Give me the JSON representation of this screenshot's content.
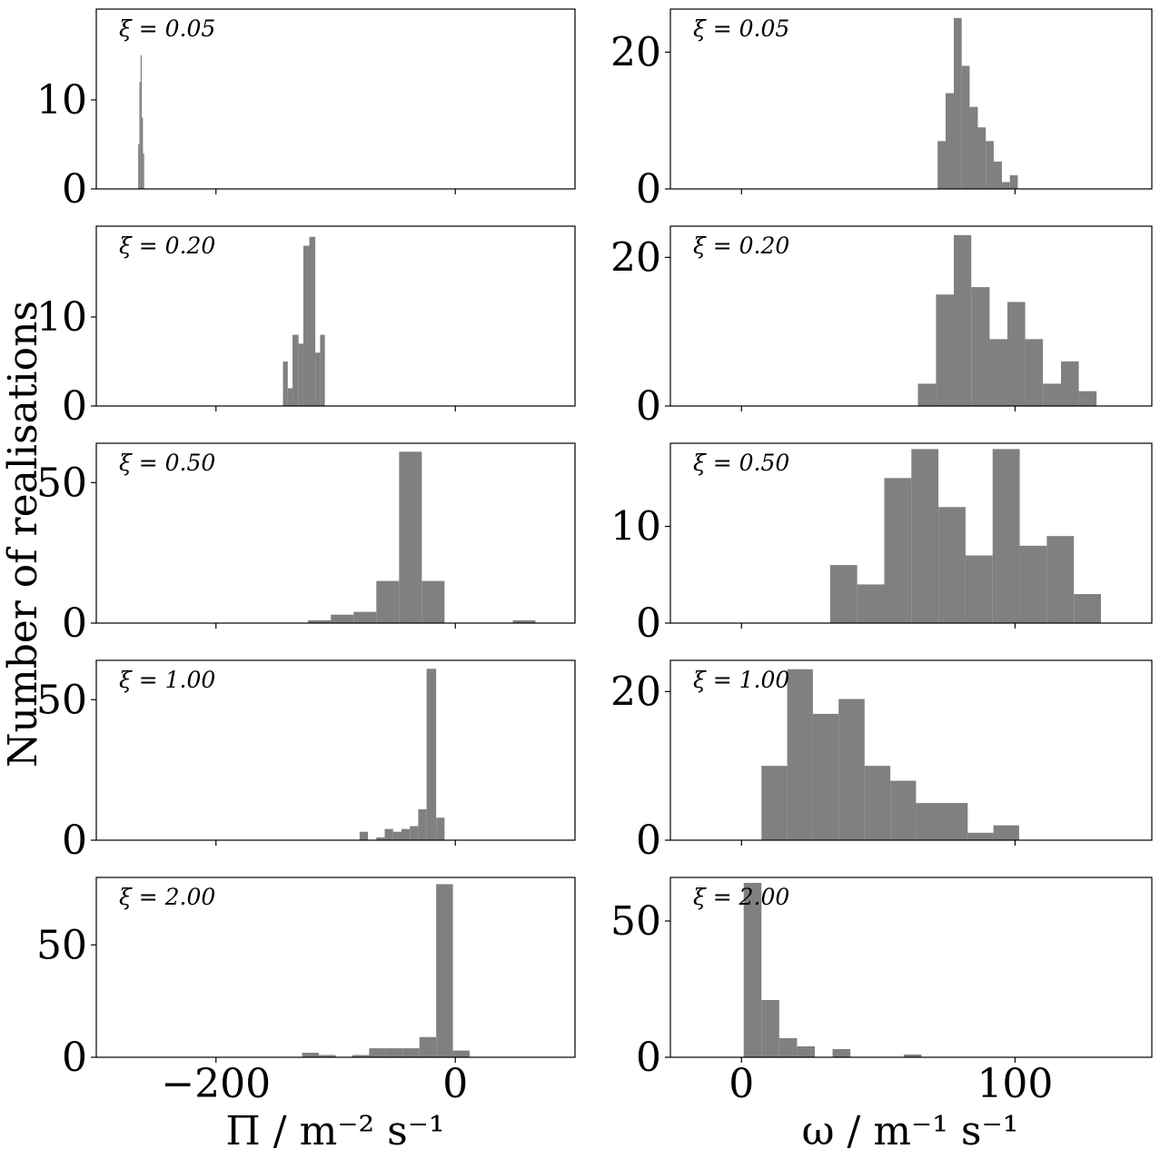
{
  "figure": {
    "ylabel": "Number of realisations",
    "columns": [
      {
        "xlabel": "Π / m⁻² s⁻¹"
      },
      {
        "xlabel": "ω / m⁻¹ s⁻¹"
      }
    ]
  },
  "chart_data": [
    {
      "type": "bar",
      "column": 0,
      "row": 0,
      "label": "ξ = 0.05",
      "xlim": [
        -300,
        100
      ],
      "ylim": [
        0,
        20.2
      ],
      "xticks": [
        -200,
        0
      ],
      "xtick_labels": [
        "−200",
        "0"
      ],
      "yticks": [
        0,
        10
      ],
      "ytick_labels": [
        "0",
        "10"
      ],
      "bins": [
        [
          -265,
          -264,
          5
        ],
        [
          -264,
          -263,
          12
        ],
        [
          -263,
          -262,
          15
        ],
        [
          -262,
          -261,
          8
        ],
        [
          -261,
          -260,
          4
        ]
      ]
    },
    {
      "type": "bar",
      "column": 1,
      "row": 0,
      "label": "ξ = 0.05",
      "xlim": [
        -26,
        150
      ],
      "ylim": [
        0,
        26.3
      ],
      "xticks": [
        0,
        100
      ],
      "xtick_labels": [
        "0",
        "100"
      ],
      "yticks": [
        0,
        20
      ],
      "ytick_labels": [
        "0",
        "20"
      ],
      "bins": [
        [
          71.7,
          74.6,
          7
        ],
        [
          74.6,
          77.6,
          14
        ],
        [
          77.6,
          80.5,
          25
        ],
        [
          80.5,
          83.4,
          18
        ],
        [
          83.4,
          86.4,
          12
        ],
        [
          86.4,
          89.3,
          9
        ],
        [
          89.3,
          92.2,
          7
        ],
        [
          92.2,
          95.2,
          4
        ],
        [
          95.2,
          98.1,
          1
        ],
        [
          98.1,
          101.0,
          2
        ]
      ]
    },
    {
      "type": "bar",
      "column": 0,
      "row": 1,
      "label": "ξ = 0.20",
      "xlim": [
        -300,
        100
      ],
      "ylim": [
        0,
        20.2
      ],
      "xticks": [
        -200,
        0
      ],
      "xtick_labels": [
        "−200",
        "0"
      ],
      "yticks": [
        0,
        10
      ],
      "ytick_labels": [
        "0",
        "10"
      ],
      "bins": [
        [
          -144,
          -140,
          5
        ],
        [
          -140,
          -136,
          2
        ],
        [
          -136,
          -131,
          8
        ],
        [
          -131,
          -127,
          7
        ],
        [
          -127,
          -122,
          18
        ],
        [
          -122,
          -117,
          19
        ],
        [
          -117,
          -113,
          6
        ],
        [
          -113,
          -109,
          8
        ]
      ]
    },
    {
      "type": "bar",
      "column": 1,
      "row": 1,
      "label": "ξ = 0.20",
      "xlim": [
        -26,
        150
      ],
      "ylim": [
        0,
        24.2
      ],
      "xticks": [
        0,
        100
      ],
      "xtick_labels": [
        "0",
        "100"
      ],
      "yticks": [
        0,
        20
      ],
      "ytick_labels": [
        "0",
        "20"
      ],
      "bins": [
        [
          64.5,
          71.1,
          3
        ],
        [
          71.1,
          77.6,
          15
        ],
        [
          77.6,
          84.0,
          23
        ],
        [
          84.0,
          90.7,
          16
        ],
        [
          90.7,
          97.2,
          9
        ],
        [
          97.2,
          103.7,
          14
        ],
        [
          103.7,
          110.2,
          9
        ],
        [
          110.2,
          116.8,
          3
        ],
        [
          116.8,
          123.3,
          6
        ],
        [
          123.3,
          129.8,
          2
        ]
      ]
    },
    {
      "type": "bar",
      "column": 0,
      "row": 2,
      "label": "ξ = 0.50",
      "xlim": [
        -300,
        100
      ],
      "ylim": [
        0,
        64
      ],
      "xticks": [
        -200,
        0
      ],
      "xtick_labels": [
        "−200",
        "0"
      ],
      "yticks": [
        0,
        50
      ],
      "ytick_labels": [
        "0",
        "50"
      ],
      "bins": [
        [
          -123,
          -104,
          1
        ],
        [
          -104,
          -85,
          3
        ],
        [
          -85,
          -66,
          4
        ],
        [
          -66,
          -47,
          15
        ],
        [
          -47,
          -28,
          61
        ],
        [
          -28,
          -9,
          15
        ],
        [
          -9,
          10,
          0
        ],
        [
          10,
          29,
          0
        ],
        [
          48,
          67,
          1
        ]
      ]
    },
    {
      "type": "bar",
      "column": 1,
      "row": 2,
      "label": "ξ = 0.50",
      "xlim": [
        -26,
        150
      ],
      "ylim": [
        0,
        18.6
      ],
      "xticks": [
        0,
        100
      ],
      "xtick_labels": [
        "0",
        "100"
      ],
      "yticks": [
        0,
        10
      ],
      "ytick_labels": [
        "0",
        "10"
      ],
      "bins": [
        [
          32.4,
          42.3,
          6
        ],
        [
          42.3,
          52.2,
          4
        ],
        [
          52.2,
          62.1,
          15
        ],
        [
          62.1,
          72.0,
          18
        ],
        [
          72.0,
          81.9,
          12
        ],
        [
          81.9,
          91.8,
          7
        ],
        [
          91.8,
          101.7,
          18
        ],
        [
          101.7,
          111.6,
          8
        ],
        [
          111.6,
          121.5,
          9
        ],
        [
          121.5,
          131.4,
          3
        ]
      ]
    },
    {
      "type": "bar",
      "column": 0,
      "row": 3,
      "label": "ξ = 1.00",
      "xlim": [
        -300,
        100
      ],
      "ylim": [
        0,
        64
      ],
      "xticks": [
        -200,
        0
      ],
      "xtick_labels": [
        "−200",
        "0"
      ],
      "yticks": [
        0,
        50
      ],
      "ytick_labels": [
        "0",
        "50"
      ],
      "bins": [
        [
          -80,
          -73,
          3
        ],
        [
          -73,
          -66,
          0
        ],
        [
          -66,
          -59,
          1
        ],
        [
          -59,
          -52,
          4
        ],
        [
          -52,
          -45,
          3
        ],
        [
          -45,
          -38,
          4
        ],
        [
          -38,
          -31,
          5
        ],
        [
          -31,
          -24,
          11
        ],
        [
          -24,
          -16,
          61
        ],
        [
          -16,
          -9,
          8
        ]
      ]
    },
    {
      "type": "bar",
      "column": 1,
      "row": 3,
      "label": "ξ = 1.00",
      "xlim": [
        -26,
        150
      ],
      "ylim": [
        0,
        24.2
      ],
      "xticks": [
        0,
        100
      ],
      "xtick_labels": [
        "0",
        "100"
      ],
      "yticks": [
        0,
        20
      ],
      "ytick_labels": [
        "0",
        "20"
      ],
      "bins": [
        [
          7.3,
          16.7,
          10
        ],
        [
          16.7,
          26.1,
          23
        ],
        [
          26.1,
          35.5,
          17
        ],
        [
          35.5,
          45.0,
          19
        ],
        [
          45.0,
          54.4,
          10
        ],
        [
          54.4,
          63.8,
          8
        ],
        [
          63.8,
          73.3,
          5
        ],
        [
          73.3,
          82.7,
          5
        ],
        [
          82.7,
          92.1,
          1
        ],
        [
          92.1,
          101.5,
          2
        ]
      ]
    },
    {
      "type": "bar",
      "column": 0,
      "row": 4,
      "label": "ξ = 2.00",
      "xlim": [
        -300,
        100
      ],
      "ylim": [
        0,
        80
      ],
      "xticks": [
        -200,
        0
      ],
      "xtick_labels": [
        "−200",
        "0"
      ],
      "yticks": [
        0,
        50
      ],
      "ytick_labels": [
        "0",
        "50"
      ],
      "bins": [
        [
          -128,
          -114,
          2
        ],
        [
          -114,
          -100,
          1
        ],
        [
          -100,
          -86,
          0
        ],
        [
          -86,
          -72,
          1
        ],
        [
          -72,
          -58,
          4
        ],
        [
          -58,
          -44,
          4
        ],
        [
          -44,
          -30,
          4
        ],
        [
          -30,
          -16,
          9
        ],
        [
          -16,
          -2,
          77
        ],
        [
          -2,
          12,
          3
        ]
      ]
    },
    {
      "type": "bar",
      "column": 1,
      "row": 4,
      "label": "ξ = 2.00",
      "xlim": [
        -26,
        150
      ],
      "ylim": [
        0,
        66
      ],
      "xticks": [
        0,
        100
      ],
      "xtick_labels": [
        "0",
        "100"
      ],
      "yticks": [
        0,
        50
      ],
      "ytick_labels": [
        "0",
        "50"
      ],
      "bins": [
        [
          0.8,
          7.3,
          64
        ],
        [
          7.3,
          13.8,
          21
        ],
        [
          13.8,
          20.3,
          7
        ],
        [
          20.3,
          26.8,
          4
        ],
        [
          26.8,
          33.3,
          0
        ],
        [
          33.3,
          39.8,
          3
        ],
        [
          39.8,
          46.3,
          0
        ],
        [
          46.3,
          52.8,
          0
        ],
        [
          52.8,
          59.3,
          0
        ],
        [
          59.3,
          65.8,
          1
        ]
      ]
    }
  ]
}
